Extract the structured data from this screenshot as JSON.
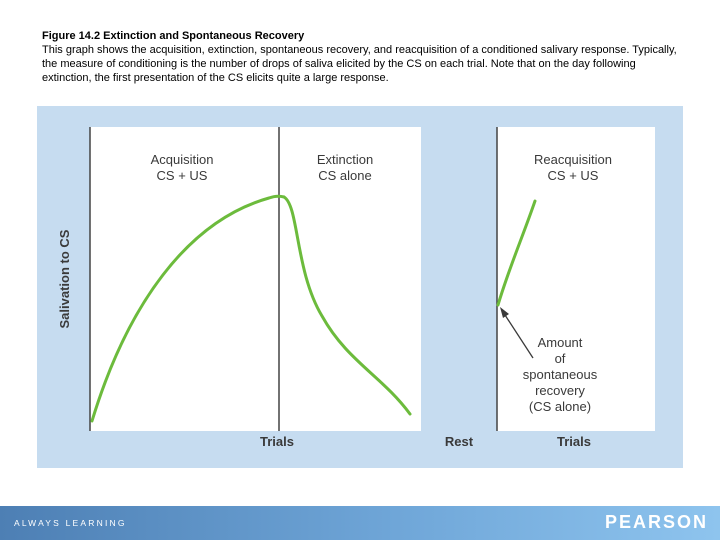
{
  "caption": {
    "title": "Figure 14.2   Extinction and Spontaneous Recovery",
    "body": "This graph shows the acquisition, extinction, spontaneous recovery, and reacquisition of a conditioned salivary response. Typically, the measure of conditioning is the number of drops of saliva elicited by the CS on each trial. Note that on the day following extinction, the first presentation of the CS elicits quite a large response."
  },
  "diagram": {
    "y_axis_label": "Salivation to CS",
    "phases": [
      {
        "title": "Acquisition",
        "subtitle": "CS + US"
      },
      {
        "title": "Extinction",
        "subtitle": "CS alone"
      },
      {
        "title": "Reacquisition",
        "subtitle": "CS + US"
      }
    ],
    "x_labels": {
      "trials_left": "Trials",
      "rest": "Rest",
      "trials_right": "Trials"
    },
    "annotation_lines": [
      "Amount",
      "of",
      "spontaneous",
      "recovery",
      "(CS alone)"
    ],
    "colors": {
      "panel": "#c6dcf0",
      "plot_bg": "#ffffff",
      "curve": "#6cbb3c",
      "text": "#3a3a3a"
    }
  },
  "footer": {
    "tagline": "ALWAYS LEARNING",
    "logo": "PEARSON"
  }
}
